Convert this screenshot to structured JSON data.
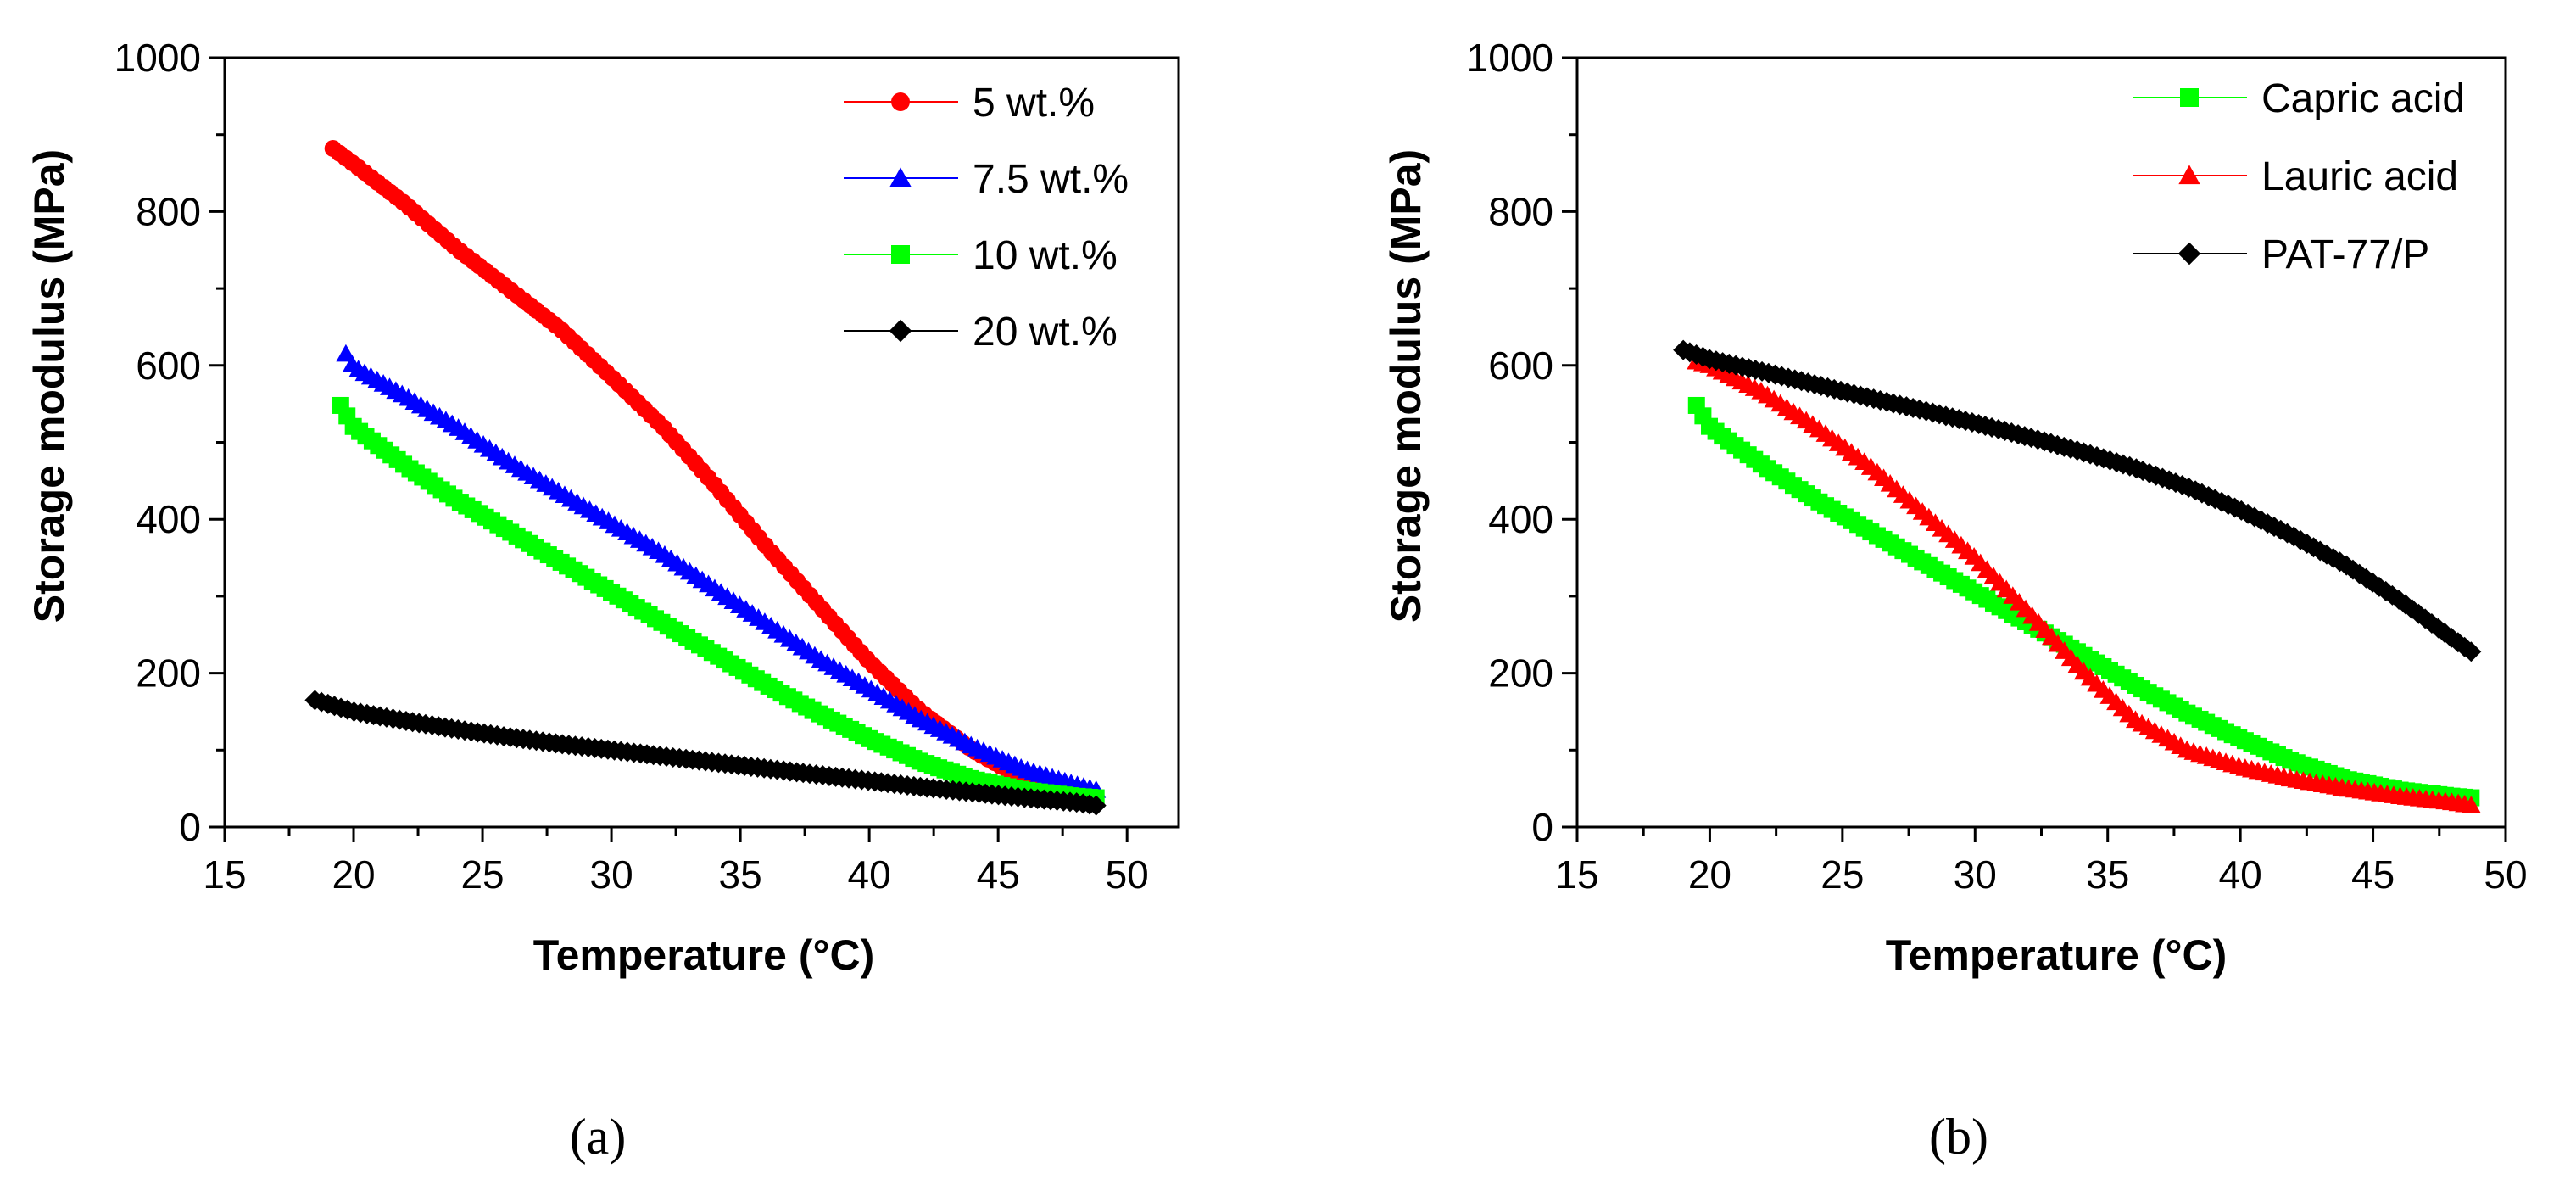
{
  "figure": {
    "captions": [
      "(a)",
      "(b)"
    ]
  },
  "chart_data": [
    {
      "type": "line",
      "title": "",
      "caption": "(a)",
      "xlabel": "Temperature (°C)",
      "ylabel": "Storage modulus (MPa)",
      "xlim": [
        15,
        52
      ],
      "ylim": [
        0,
        1000
      ],
      "xticks": [
        15,
        20,
        25,
        30,
        35,
        40,
        45,
        50
      ],
      "yticks": [
        0,
        200,
        400,
        600,
        800,
        1000
      ],
      "legend_position": "top-right",
      "series": [
        {
          "name": "5 wt.%",
          "color": "#ff0000",
          "marker": "circle",
          "x": [
            19.2,
            20,
            22,
            24,
            26,
            28,
            30,
            32,
            34,
            36,
            38,
            40,
            42,
            44,
            46,
            48,
            48.8
          ],
          "values": [
            882,
            862,
            810,
            752,
            700,
            648,
            585,
            520,
            445,
            365,
            290,
            215,
            150,
            100,
            62,
            45,
            40
          ]
        },
        {
          "name": "7.5 wt.%",
          "color": "#0000ff",
          "marker": "triangle",
          "x": [
            19.7,
            20,
            22,
            24,
            26,
            28,
            30,
            32,
            34,
            36,
            38,
            40,
            42,
            44,
            46,
            48,
            48.8
          ],
          "values": [
            615,
            598,
            560,
            520,
            475,
            435,
            395,
            355,
            310,
            265,
            220,
            180,
            140,
            105,
            75,
            55,
            48
          ]
        },
        {
          "name": "10 wt.%",
          "color": "#00ff00",
          "marker": "square",
          "x": [
            19.5,
            20,
            22,
            24,
            26,
            28,
            30,
            32,
            34,
            36,
            38,
            40,
            42,
            44,
            46,
            48,
            48.8
          ],
          "values": [
            548,
            520,
            470,
            425,
            385,
            345,
            305,
            265,
            225,
            185,
            148,
            115,
            85,
            62,
            48,
            40,
            38
          ]
        },
        {
          "name": "20 wt.%",
          "color": "#000000",
          "marker": "diamond",
          "x": [
            18.5,
            20,
            22,
            24,
            26,
            28,
            30,
            32,
            34,
            36,
            38,
            40,
            42,
            44,
            46,
            48,
            48.8
          ],
          "values": [
            165,
            150,
            138,
            127,
            117,
            108,
            100,
            92,
            84,
            76,
            68,
            60,
            52,
            45,
            38,
            32,
            28
          ]
        }
      ]
    },
    {
      "type": "line",
      "title": "",
      "caption": "(b)",
      "xlabel": "Temperature (°C)",
      "ylabel": "Storage modulus (MPa)",
      "xlim": [
        15,
        50
      ],
      "ylim": [
        0,
        1000
      ],
      "xticks": [
        15,
        20,
        25,
        30,
        35,
        40,
        45,
        50
      ],
      "yticks": [
        0,
        200,
        400,
        600,
        800,
        1000
      ],
      "legend_position": "top-right",
      "series": [
        {
          "name": "Capric acid",
          "color": "#00ff00",
          "marker": "square",
          "x": [
            19.5,
            20,
            22,
            24,
            26,
            28,
            30,
            32,
            34,
            36,
            38,
            40,
            42,
            44,
            46,
            48,
            48.7
          ],
          "values": [
            548,
            520,
            470,
            425,
            385,
            345,
            305,
            265,
            225,
            185,
            148,
            115,
            85,
            62,
            48,
            40,
            38
          ]
        },
        {
          "name": "Lauric acid",
          "color": "#ff0000",
          "marker": "triangle",
          "x": [
            19.5,
            20,
            22,
            24,
            26,
            28,
            30,
            32,
            34,
            36,
            38,
            40,
            42,
            44,
            46,
            48,
            48.7
          ],
          "values": [
            605,
            600,
            565,
            520,
            470,
            410,
            350,
            280,
            205,
            140,
            100,
            78,
            62,
            50,
            40,
            32,
            28
          ]
        },
        {
          "name": "PAT-77/P",
          "color": "#000000",
          "marker": "diamond",
          "x": [
            19,
            20,
            22,
            24,
            26,
            28,
            30,
            32,
            34,
            36,
            38,
            40,
            42,
            44,
            46,
            48,
            48.7
          ],
          "values": [
            620,
            608,
            592,
            575,
            558,
            542,
            525,
            507,
            488,
            467,
            442,
            412,
            378,
            340,
            295,
            245,
            228
          ]
        }
      ]
    }
  ]
}
